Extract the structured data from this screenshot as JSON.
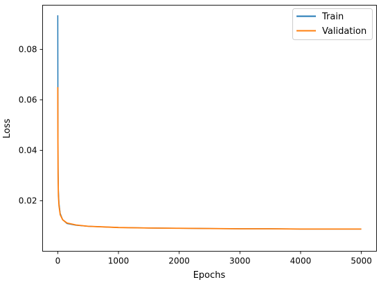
{
  "chart_data": {
    "type": "line",
    "title": "",
    "xlabel": "Epochs",
    "ylabel": "Loss",
    "xlim": [
      -250,
      5250
    ],
    "ylim": [
      0.0,
      0.0975
    ],
    "xticks": [
      0,
      1000,
      2000,
      3000,
      4000,
      5000
    ],
    "xtick_labels": [
      "0",
      "1000",
      "2000",
      "3000",
      "4000",
      "5000"
    ],
    "yticks": [
      0.02,
      0.04,
      0.06,
      0.08
    ],
    "ytick_labels": [
      "0.02",
      "0.04",
      "0.06",
      "0.08"
    ],
    "grid": false,
    "legend_position": "top-right",
    "series": [
      {
        "name": "Train",
        "color": "#1f77b4",
        "x": [
          0,
          2,
          5,
          10,
          20,
          40,
          80,
          150,
          300,
          500,
          800,
          1000,
          1500,
          2000,
          2500,
          3000,
          3500,
          4000,
          4500,
          5000
        ],
        "values": [
          0.0935,
          0.062,
          0.033,
          0.024,
          0.019,
          0.015,
          0.0125,
          0.011,
          0.0103,
          0.0099,
          0.0096,
          0.0094,
          0.0092,
          0.0091,
          0.009,
          0.0089,
          0.0089,
          0.0088,
          0.0088,
          0.0088
        ]
      },
      {
        "name": "Validation",
        "color": "#ff7f0e",
        "x": [
          0,
          2,
          5,
          10,
          20,
          40,
          80,
          150,
          300,
          500,
          800,
          1000,
          1500,
          2000,
          2500,
          3000,
          3500,
          4000,
          4500,
          5000
        ],
        "values": [
          0.065,
          0.045,
          0.03,
          0.022,
          0.018,
          0.0145,
          0.0125,
          0.0112,
          0.0104,
          0.0099,
          0.0096,
          0.0094,
          0.0092,
          0.0091,
          0.009,
          0.0089,
          0.0089,
          0.0088,
          0.0088,
          0.0088
        ]
      }
    ]
  }
}
